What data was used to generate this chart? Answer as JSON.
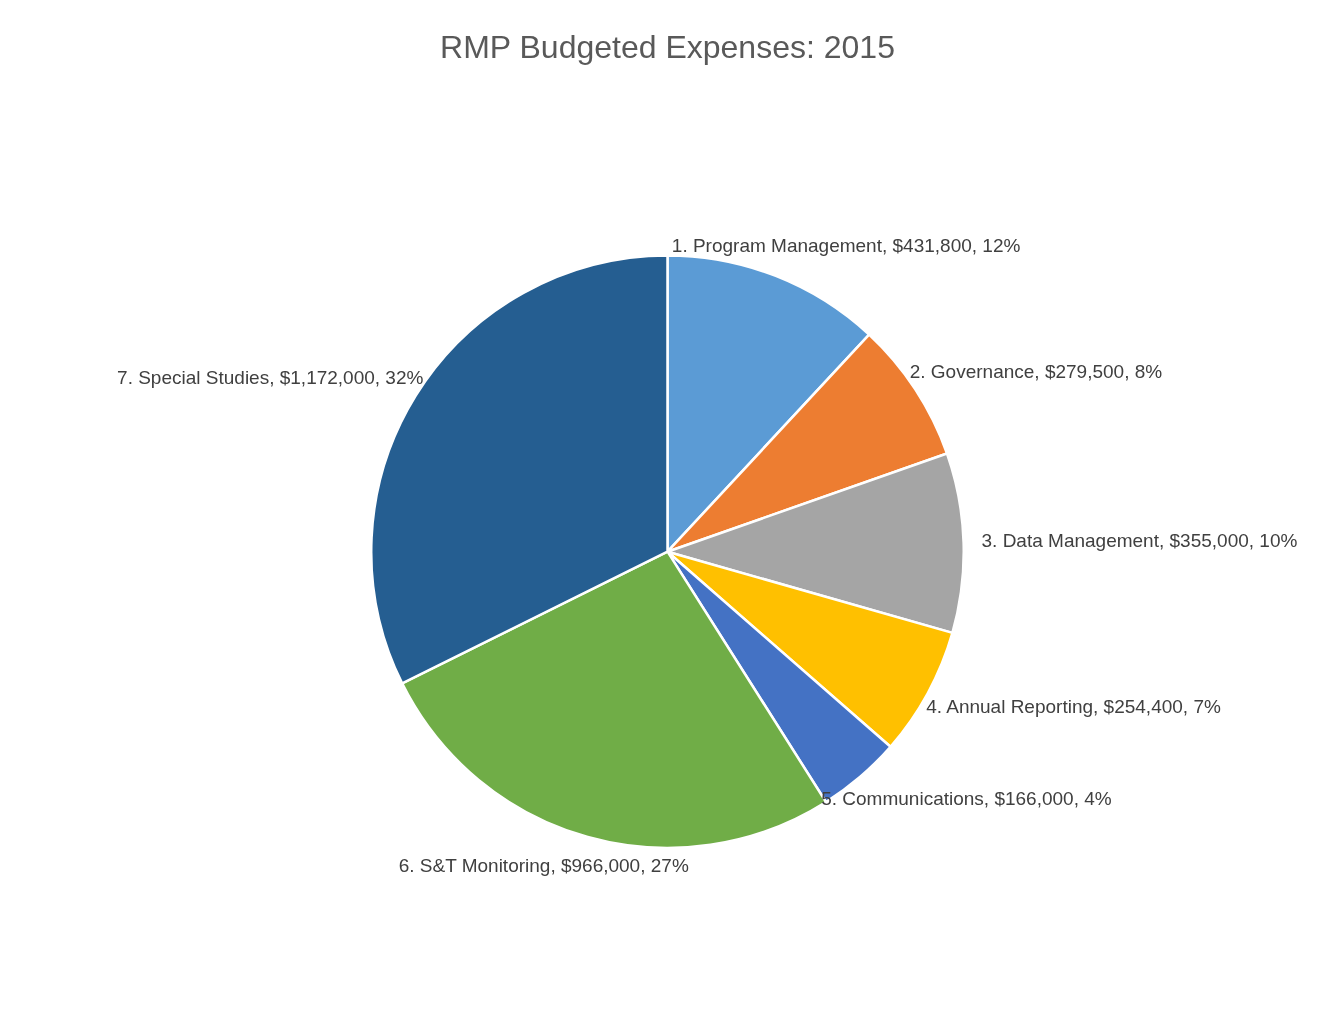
{
  "chart_data": {
    "type": "pie",
    "title": "RMP Budgeted Expenses: 2015",
    "categories": [
      "1. Program Management",
      "2. Governance",
      "3. Data Management",
      "4. Annual Reporting",
      "5. Communications",
      "6. S&T Monitoring",
      "7. Special Studies"
    ],
    "values": [
      431800,
      279500,
      355000,
      254400,
      166000,
      966000,
      1172000
    ],
    "value_labels": [
      "$431,800, 12%",
      "$279,500, 8%",
      "$355,000, 10%",
      "$254,400, 7%",
      "$166,000, 4%",
      "$966,000, 27%",
      "$1,172,000, 32%"
    ],
    "colors": [
      "#5b9bd5",
      "#ed7d31",
      "#a5a5a5",
      "#ffc000",
      "#4472c4",
      "#70ad47",
      "#255e91"
    ],
    "legend": false
  }
}
